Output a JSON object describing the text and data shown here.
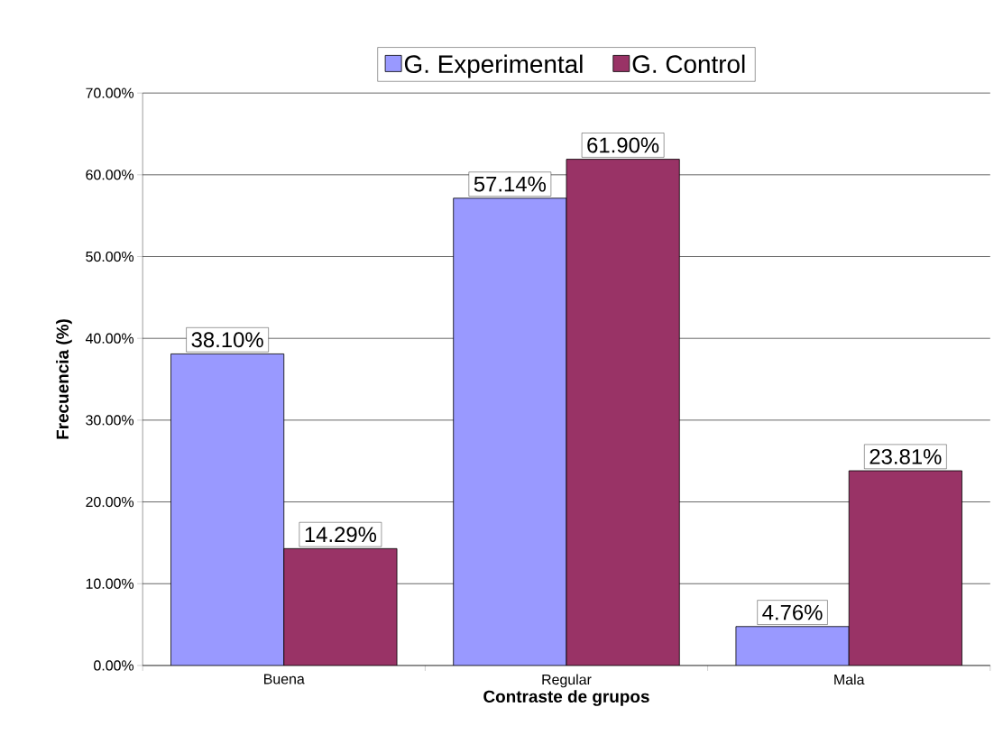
{
  "chart_data": {
    "type": "bar",
    "xlabel": "Contraste de grupos",
    "ylabel": "Frecuencia (%)",
    "categories": [
      "Buena",
      "Regular",
      "Mala"
    ],
    "series": [
      {
        "name": "G. Experimental",
        "color": "#9999ff",
        "values": [
          38.1,
          57.14,
          4.76
        ],
        "value_labels": [
          "38.10%",
          "57.14%",
          "4.76%"
        ]
      },
      {
        "name": "G. Control",
        "color": "#993366",
        "values": [
          14.29,
          61.9,
          23.81
        ],
        "value_labels": [
          "14.29%",
          "61.90%",
          "23.81%"
        ]
      }
    ],
    "ylim": [
      0,
      70
    ],
    "yticks": [
      {
        "value": 0,
        "label": "0.00%"
      },
      {
        "value": 10,
        "label": "10.00%"
      },
      {
        "value": 20,
        "label": "20.00%"
      },
      {
        "value": 30,
        "label": "30.00%"
      },
      {
        "value": 40,
        "label": "40.00%"
      },
      {
        "value": 50,
        "label": "50.00%"
      },
      {
        "value": 60,
        "label": "60.00%"
      },
      {
        "value": 70,
        "label": "70.00%"
      }
    ],
    "grid": "y",
    "legend": "top"
  }
}
